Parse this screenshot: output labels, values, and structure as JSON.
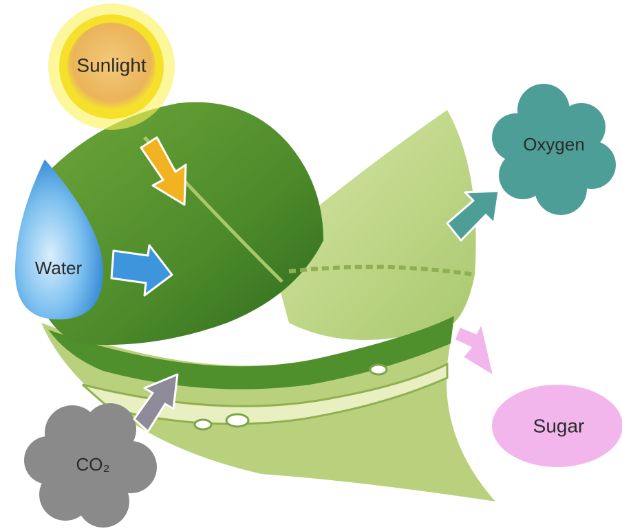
{
  "nodes": [
    {
      "label": "Sunlight"
    },
    {
      "label": "Water"
    },
    {
      "label": "Oxygen"
    },
    {
      "label": "Sugar"
    },
    {
      "label": "CO₂"
    }
  ]
}
